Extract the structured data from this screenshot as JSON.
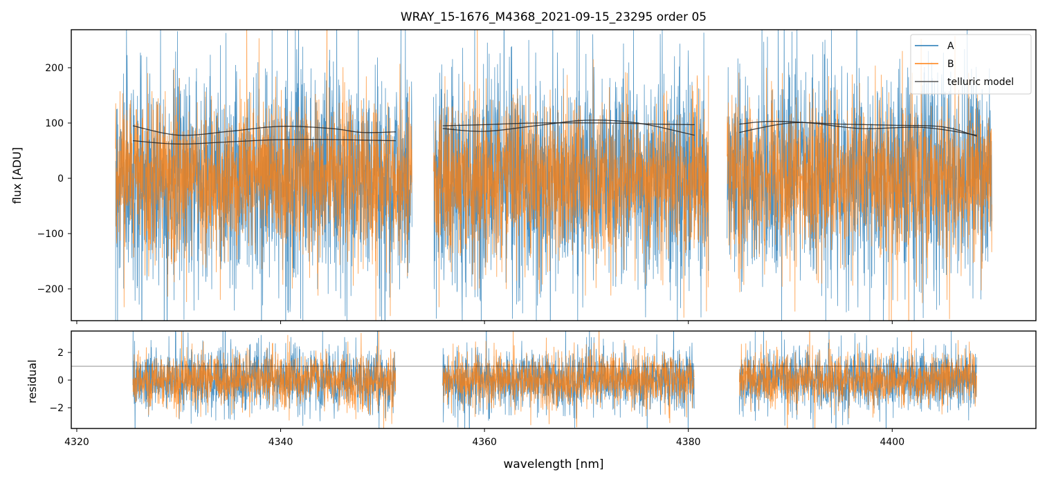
{
  "chart_data": [
    {
      "type": "line",
      "title": "WRAY_15-1676_M4368_2021-09-15_23295  order 05",
      "xlabel": "",
      "ylabel": "flux [ADU]",
      "xlim": [
        4319.46,
        4414.1
      ],
      "ylim": [
        -257.5,
        268.75
      ],
      "xticks": [
        4320,
        4340,
        4360,
        4380,
        4400
      ],
      "yticks": [
        -200,
        -100,
        0,
        100,
        200
      ],
      "ytick_labels": [
        "−200",
        "−100",
        "0",
        "100",
        "200"
      ],
      "legend": {
        "placement": "top-right",
        "entries": [
          "A",
          "B",
          "telluric model"
        ]
      },
      "series": [
        {
          "name": "A",
          "color": "#1f77b4",
          "segments": [
            [
              4323.8,
              4352.9
            ],
            [
              4355.0,
              4382.0
            ],
            [
              4383.8,
              4409.8
            ]
          ],
          "mean": 0,
          "noise_std": 95
        },
        {
          "name": "B",
          "color": "#ff7f0e",
          "segments": [
            [
              4323.8,
              4352.9
            ],
            [
              4355.0,
              4382.0
            ],
            [
              4383.8,
              4409.8
            ]
          ],
          "mean": 0,
          "noise_std": 68
        }
      ],
      "telluric_model": {
        "name": "telluric model",
        "color": "#333333",
        "curves": [
          {
            "x": [
              4325.5,
              4330,
              4335,
              4340,
              4345,
              4348,
              4351.3
            ],
            "y": [
              95,
              78,
              85,
              94,
              90,
              83,
              84
            ]
          },
          {
            "x": [
              4325.5,
              4330,
              4335,
              4340,
              4345,
              4351.3
            ],
            "y": [
              68,
              62,
              66,
              70,
              70,
              68
            ]
          },
          {
            "x": [
              4355.9,
              4360,
              4365,
              4372,
              4377,
              4380.6
            ],
            "y": [
              95,
              97,
              100,
              100,
              98,
              97
            ]
          },
          {
            "x": [
              4355.9,
              4360,
              4365,
              4370,
              4375,
              4380.6
            ],
            "y": [
              90,
              85,
              95,
              105,
              100,
              78
            ]
          },
          {
            "x": [
              4385,
              4388,
              4392,
              4397,
              4403,
              4408.3
            ],
            "y": [
              98,
              103,
              100,
              90,
              92,
              78
            ]
          },
          {
            "x": [
              4385,
              4390,
              4395,
              4400,
              4405,
              4408.3
            ],
            "y": [
              83,
              100,
              98,
              96,
              93,
              76
            ]
          }
        ]
      }
    },
    {
      "type": "line",
      "xlabel": "wavelength [nm]",
      "ylabel": "residual",
      "xlim": [
        4319.46,
        4414.1
      ],
      "ylim": [
        -3.5,
        3.55
      ],
      "xticks": [
        4320,
        4340,
        4360,
        4380,
        4400
      ],
      "xtick_labels": [
        "4320",
        "4340",
        "4360",
        "4380",
        "4400"
      ],
      "yticks": [
        -2,
        0,
        2
      ],
      "ytick_labels": [
        "−2",
        "0",
        "2"
      ],
      "reference_line": 1,
      "series": [
        {
          "name": "A",
          "color": "#1f77b4",
          "segments": [
            [
              4325.5,
              4351.3
            ],
            [
              4355.9,
              4380.6
            ],
            [
              4385.0,
              4408.3
            ]
          ],
          "mean": 0,
          "noise_std": 1.1
        },
        {
          "name": "B",
          "color": "#ff7f0e",
          "segments": [
            [
              4325.5,
              4351.3
            ],
            [
              4355.9,
              4380.6
            ],
            [
              4385.0,
              4408.3
            ]
          ],
          "mean": 0,
          "noise_std": 0.95
        }
      ]
    }
  ]
}
